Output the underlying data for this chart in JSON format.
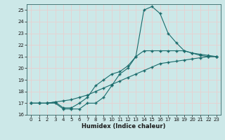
{
  "xlabel": "Humidex (Indice chaleur)",
  "xlim": [
    -0.5,
    23.5
  ],
  "ylim": [
    16,
    25.5
  ],
  "yticks": [
    16,
    17,
    18,
    19,
    20,
    21,
    22,
    23,
    24,
    25
  ],
  "xticks": [
    0,
    1,
    2,
    3,
    4,
    5,
    6,
    7,
    8,
    9,
    10,
    11,
    12,
    13,
    14,
    15,
    16,
    17,
    18,
    19,
    20,
    21,
    22,
    23
  ],
  "bg_color": "#cce8e8",
  "grid_color": "#b0d4d4",
  "line_color": "#1a6b6b",
  "series1_x": [
    0,
    1,
    2,
    3,
    4,
    5,
    6,
    7,
    8,
    9,
    10,
    11,
    12,
    13,
    14,
    15,
    16,
    17,
    18,
    19,
    20,
    21,
    22,
    23
  ],
  "series1_y": [
    17.0,
    17.0,
    17.0,
    17.0,
    16.5,
    16.5,
    16.5,
    17.0,
    17.0,
    17.5,
    18.5,
    19.5,
    20.0,
    21.0,
    25.0,
    25.3,
    24.7,
    23.0,
    22.2,
    21.5,
    21.3,
    21.2,
    21.1,
    21.0
  ],
  "series2_x": [
    0,
    1,
    2,
    3,
    4,
    5,
    6,
    7,
    8,
    9,
    10,
    11,
    12,
    13,
    14,
    15,
    16,
    17,
    18,
    19,
    20,
    21,
    22,
    23
  ],
  "series2_y": [
    17.0,
    17.0,
    17.0,
    17.1,
    16.6,
    16.6,
    17.0,
    17.5,
    18.5,
    19.0,
    19.5,
    19.7,
    20.2,
    21.0,
    21.5,
    21.5,
    21.5,
    21.5,
    21.5,
    21.5,
    21.3,
    21.1,
    21.0,
    21.0
  ],
  "series3_x": [
    0,
    1,
    2,
    3,
    4,
    5,
    6,
    7,
    8,
    9,
    10,
    11,
    12,
    13,
    14,
    15,
    16,
    17,
    18,
    19,
    20,
    21,
    22,
    23
  ],
  "series3_y": [
    17.0,
    17.0,
    17.0,
    17.1,
    17.2,
    17.3,
    17.5,
    17.7,
    18.0,
    18.3,
    18.6,
    18.9,
    19.2,
    19.5,
    19.8,
    20.1,
    20.4,
    20.5,
    20.6,
    20.7,
    20.8,
    20.9,
    21.0,
    21.0
  ]
}
